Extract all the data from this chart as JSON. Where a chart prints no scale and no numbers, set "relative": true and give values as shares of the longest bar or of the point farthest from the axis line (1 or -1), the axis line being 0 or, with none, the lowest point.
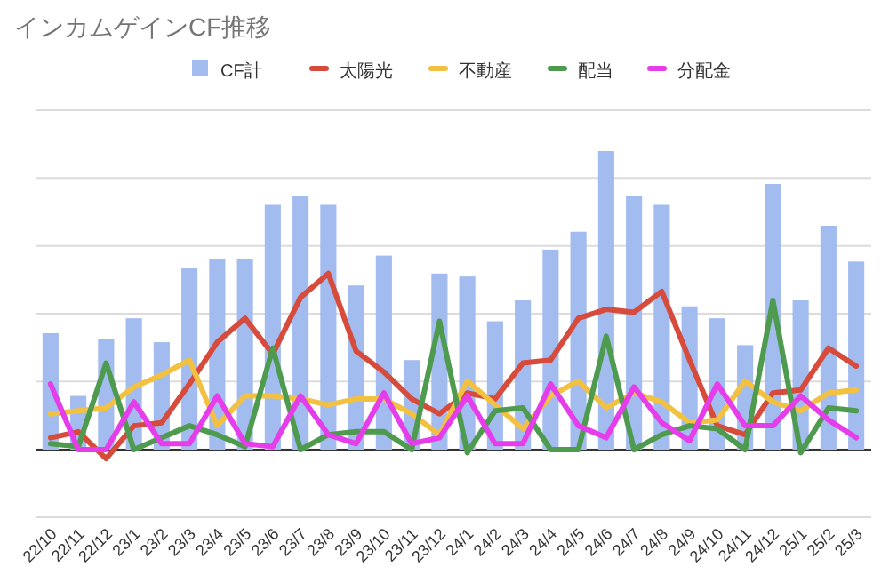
{
  "chart_data": {
    "type": "bar",
    "title": "インカムゲインCF推移",
    "relative": true,
    "grid": "y",
    "legend": "top",
    "categories": [
      "22/10",
      "22/11",
      "22/12",
      "23/1",
      "23/2",
      "23/3",
      "23/4",
      "23/5",
      "23/6",
      "23/7",
      "23/8",
      "23/9",
      "23/10",
      "23/11",
      "23/12",
      "24/1",
      "24/2",
      "24/3",
      "24/4",
      "24/5",
      "24/6",
      "24/7",
      "24/8",
      "24/9",
      "24/10",
      "24/11",
      "24/12",
      "25/1",
      "25/2",
      "25/3"
    ],
    "series": [
      {
        "name": "CF計",
        "color": "#a3bcf0",
        "values": [
          0.39,
          0.18,
          0.37,
          0.44,
          0.36,
          0.61,
          0.64,
          0.64,
          0.82,
          0.85,
          0.82,
          0.55,
          0.65,
          0.3,
          0.59,
          0.58,
          0.43,
          0.5,
          0.67,
          0.73,
          1,
          0.85,
          0.82,
          0.48,
          0.44,
          0.35,
          0.89,
          0.5,
          0.75,
          0.63
        ]
      },
      {
        "name": "太陽光",
        "type": "line",
        "color": "#d64b3c",
        "values": [
          0.04,
          0.06,
          -0.03,
          0.08,
          0.09,
          0.22,
          0.36,
          0.44,
          0.32,
          0.51,
          0.59,
          0.33,
          0.26,
          0.17,
          0.12,
          0.19,
          0.17,
          0.29,
          0.3,
          0.44,
          0.47,
          0.46,
          0.53,
          0.3,
          0.08,
          0.05,
          0.19,
          0.2,
          0.34,
          0.28
        ]
      },
      {
        "name": "不動産",
        "type": "line",
        "color": "#f2c141",
        "values": [
          0.12,
          0.13,
          0.14,
          0.21,
          0.25,
          0.3,
          0.08,
          0.18,
          0.18,
          0.17,
          0.15,
          0.17,
          0.17,
          0.12,
          0.05,
          0.23,
          0.15,
          0.07,
          0.18,
          0.23,
          0.14,
          0.19,
          0.16,
          0.09,
          0.1,
          0.23,
          0.16,
          0.13,
          0.19,
          0.2
        ]
      },
      {
        "name": "配当",
        "type": "line",
        "color": "#4e9a4e",
        "values": [
          0.02,
          0.01,
          0.29,
          0,
          0.04,
          0.08,
          0.05,
          0.01,
          0.34,
          0,
          0.05,
          0.06,
          0.06,
          0,
          0.43,
          -0.01,
          0.13,
          0.14,
          0,
          0,
          0.38,
          0,
          0.05,
          0.08,
          0.07,
          0,
          0.5,
          -0.01,
          0.14,
          0.13
        ]
      },
      {
        "name": "分配金",
        "type": "line",
        "color": "#e53de9",
        "values": [
          0.22,
          0,
          0,
          0.16,
          0.02,
          0.02,
          0.18,
          0.02,
          0.01,
          0.18,
          0.05,
          0.02,
          0.19,
          0.02,
          0.04,
          0.18,
          0.02,
          0.02,
          0.22,
          0.08,
          0.04,
          0.21,
          0.09,
          0.03,
          0.22,
          0.08,
          0.08,
          0.18,
          0.1,
          0.04
        ]
      }
    ]
  }
}
